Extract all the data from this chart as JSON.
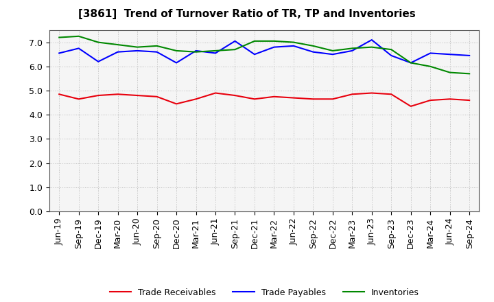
{
  "title": "[3861]  Trend of Turnover Ratio of TR, TP and Inventories",
  "labels": [
    "Jun-19",
    "Sep-19",
    "Dec-19",
    "Mar-20",
    "Jun-20",
    "Sep-20",
    "Dec-20",
    "Mar-21",
    "Jun-21",
    "Sep-21",
    "Dec-21",
    "Mar-22",
    "Jun-22",
    "Sep-22",
    "Dec-22",
    "Mar-23",
    "Jun-23",
    "Sep-23",
    "Dec-23",
    "Mar-24",
    "Jun-24",
    "Sep-24"
  ],
  "trade_receivables": [
    4.85,
    4.65,
    4.8,
    4.85,
    4.8,
    4.75,
    4.45,
    4.65,
    4.9,
    4.8,
    4.65,
    4.75,
    4.7,
    4.65,
    4.65,
    4.85,
    4.9,
    4.85,
    4.35,
    4.6,
    4.65,
    4.6
  ],
  "trade_payables": [
    6.55,
    6.75,
    6.2,
    6.6,
    6.65,
    6.6,
    6.15,
    6.65,
    6.55,
    7.05,
    6.5,
    6.8,
    6.85,
    6.6,
    6.5,
    6.65,
    7.1,
    6.45,
    6.15,
    6.55,
    6.5,
    6.45
  ],
  "inventories": [
    7.2,
    7.25,
    7.0,
    6.9,
    6.8,
    6.85,
    6.65,
    6.6,
    6.65,
    6.7,
    7.05,
    7.05,
    7.0,
    6.85,
    6.65,
    6.75,
    6.8,
    6.7,
    6.15,
    6.0,
    5.75,
    5.7
  ],
  "color_tr": "#e8000d",
  "color_tp": "#0000ff",
  "color_inv": "#008800",
  "ylim": [
    0.0,
    7.5
  ],
  "yticks": [
    0.0,
    1.0,
    2.0,
    3.0,
    4.0,
    5.0,
    6.0,
    7.0
  ],
  "legend_tr": "Trade Receivables",
  "legend_tp": "Trade Payables",
  "legend_inv": "Inventories",
  "background_color": "#ffffff",
  "plot_bg_color": "#f5f5f5",
  "grid_color": "#bbbbbb",
  "title_fontsize": 11,
  "label_fontsize": 9,
  "tick_fontsize": 9
}
